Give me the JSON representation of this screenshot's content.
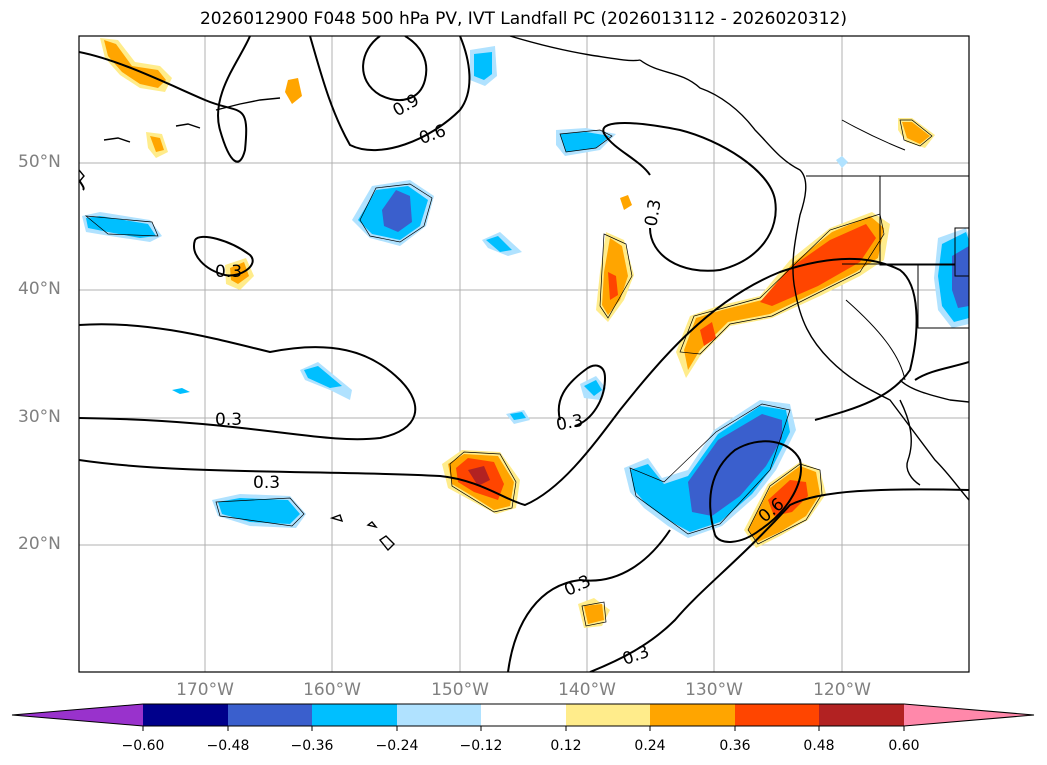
{
  "title": "2026012900 F048 500 hPa PV, IVT Landfall PC (2026013112 - 2026020312)",
  "map": {
    "lat_labels": [
      "50°N",
      "40°N",
      "30°N",
      "20°N"
    ],
    "lon_labels": [
      "170°W",
      "160°W",
      "150°W",
      "140°W",
      "130°W",
      "120°W"
    ],
    "contour_labels": [
      "0.9",
      "0.6",
      "0.3",
      "0.3",
      "0.3",
      "0.3",
      "0.3",
      "0.3",
      "0.6",
      "0.3"
    ],
    "grid": true
  },
  "colorbar": {
    "tick_labels": [
      "−0.60",
      "−0.48",
      "−0.36",
      "−0.24",
      "−0.12",
      "0.12",
      "0.24",
      "0.36",
      "0.48",
      "0.60"
    ],
    "colors": [
      "#9932cc",
      "#00008b",
      "#3a5fcd",
      "#00bfff",
      "#b0e2ff",
      "#ffffff",
      "#ffec8b",
      "#ffa500",
      "#ff4500",
      "#b22222",
      "#ff88aa"
    ]
  }
}
